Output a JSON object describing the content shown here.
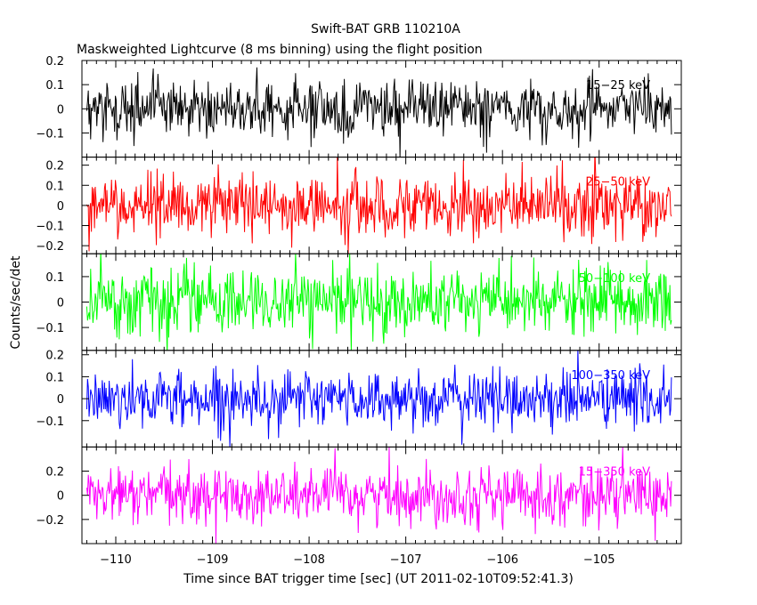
{
  "title": "Swift-BAT GRB 110210A",
  "subtitle": "Maskweighted Lightcurve (8 ms binning) using the flight position",
  "xlabel": "Time since BAT trigger time [sec] (UT 2011-02-10T09:52:41.3)",
  "ylabel": "Counts/sec/det",
  "chart_data": {
    "type": "line",
    "xlim": [
      -110.35,
      -104.15
    ],
    "x_range": [
      -110.3,
      -104.25
    ],
    "x_ticks": [
      -110,
      -109,
      -108,
      -107,
      -106,
      -105
    ],
    "x_tick_labels": [
      "−110",
      "−109",
      "−108",
      "−107",
      "−106",
      "−105"
    ],
    "series": [
      {
        "name": "15−25 keV",
        "color": "#000000",
        "ylim": [
          -0.2,
          0.2
        ],
        "y_ticks": [
          0.2,
          0.1,
          0,
          -0.1
        ],
        "y_tick_labels": [
          "0.2",
          "0.1",
          "0",
          "−0.1"
        ],
        "amplitude": 0.06
      },
      {
        "name": "25−50 keV",
        "color": "#ff0000",
        "ylim": [
          -0.24,
          0.24
        ],
        "y_ticks": [
          0.2,
          0.1,
          0,
          -0.1,
          -0.2
        ],
        "y_tick_labels": [
          "0.2",
          "0.1",
          "0",
          "−0.1",
          "−0.2"
        ],
        "amplitude": 0.075
      },
      {
        "name": "50−100 keV",
        "color": "#00ff00",
        "ylim": [
          -0.19,
          0.19
        ],
        "y_ticks": [
          0.1,
          0,
          -0.1
        ],
        "y_tick_labels": [
          "0.1",
          "0",
          "−0.1"
        ],
        "amplitude": 0.065
      },
      {
        "name": "100−350 keV",
        "color": "#0000ff",
        "ylim": [
          -0.22,
          0.22
        ],
        "y_ticks": [
          0.2,
          0.1,
          0,
          -0.1
        ],
        "y_tick_labels": [
          "0.2",
          "0.1",
          "0",
          "−0.1"
        ],
        "amplitude": 0.065
      },
      {
        "name": "15−350 keV",
        "color": "#ff00ff",
        "ylim": [
          -0.4,
          0.4
        ],
        "y_ticks": [
          0.2,
          0,
          -0.2
        ],
        "y_tick_labels": [
          "0.2",
          "0",
          "−0.2"
        ],
        "amplitude": 0.12
      }
    ]
  }
}
